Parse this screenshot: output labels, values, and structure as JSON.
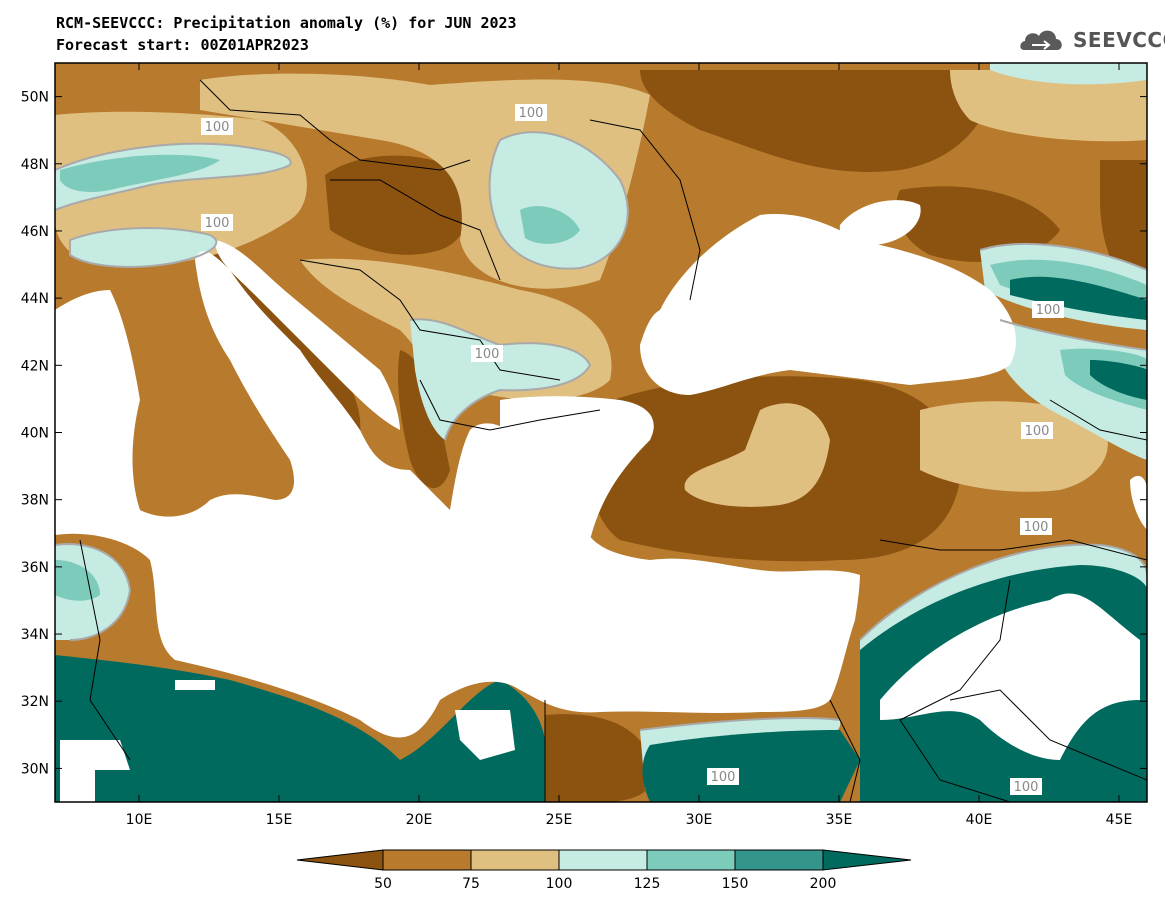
{
  "header": {
    "title": "RCM-SEEVCCC: Precipitation anomaly (%) for JUN 2023",
    "subtitle": "Forecast start: 00Z01APR2023"
  },
  "logo": {
    "text": "SEEVCCC"
  },
  "map": {
    "lon_range": [
      7,
      46
    ],
    "lat_range": [
      29,
      51
    ],
    "lon_ticks": [
      "10E",
      "15E",
      "20E",
      "25E",
      "30E",
      "35E",
      "40E",
      "45E"
    ],
    "lat_ticks": [
      "50N",
      "48N",
      "46N",
      "44N",
      "42N",
      "40N",
      "38N",
      "36N",
      "34N",
      "32N",
      "30N"
    ],
    "contour_labels": [
      "100",
      "100",
      "100",
      "100",
      "100",
      "100",
      "100",
      "100",
      "100"
    ]
  },
  "colorbar": {
    "labels": [
      "50",
      "75",
      "100",
      "125",
      "150",
      "200"
    ],
    "colors": [
      "#8b5210",
      "#b87a2c",
      "#dfc081",
      "#c5ebe3",
      "#7dcbbb",
      "#35958a",
      "#006a5e"
    ]
  },
  "colors": {
    "sea": "#ffffff",
    "border": "#000000",
    "contour": "#a9a9a9"
  }
}
